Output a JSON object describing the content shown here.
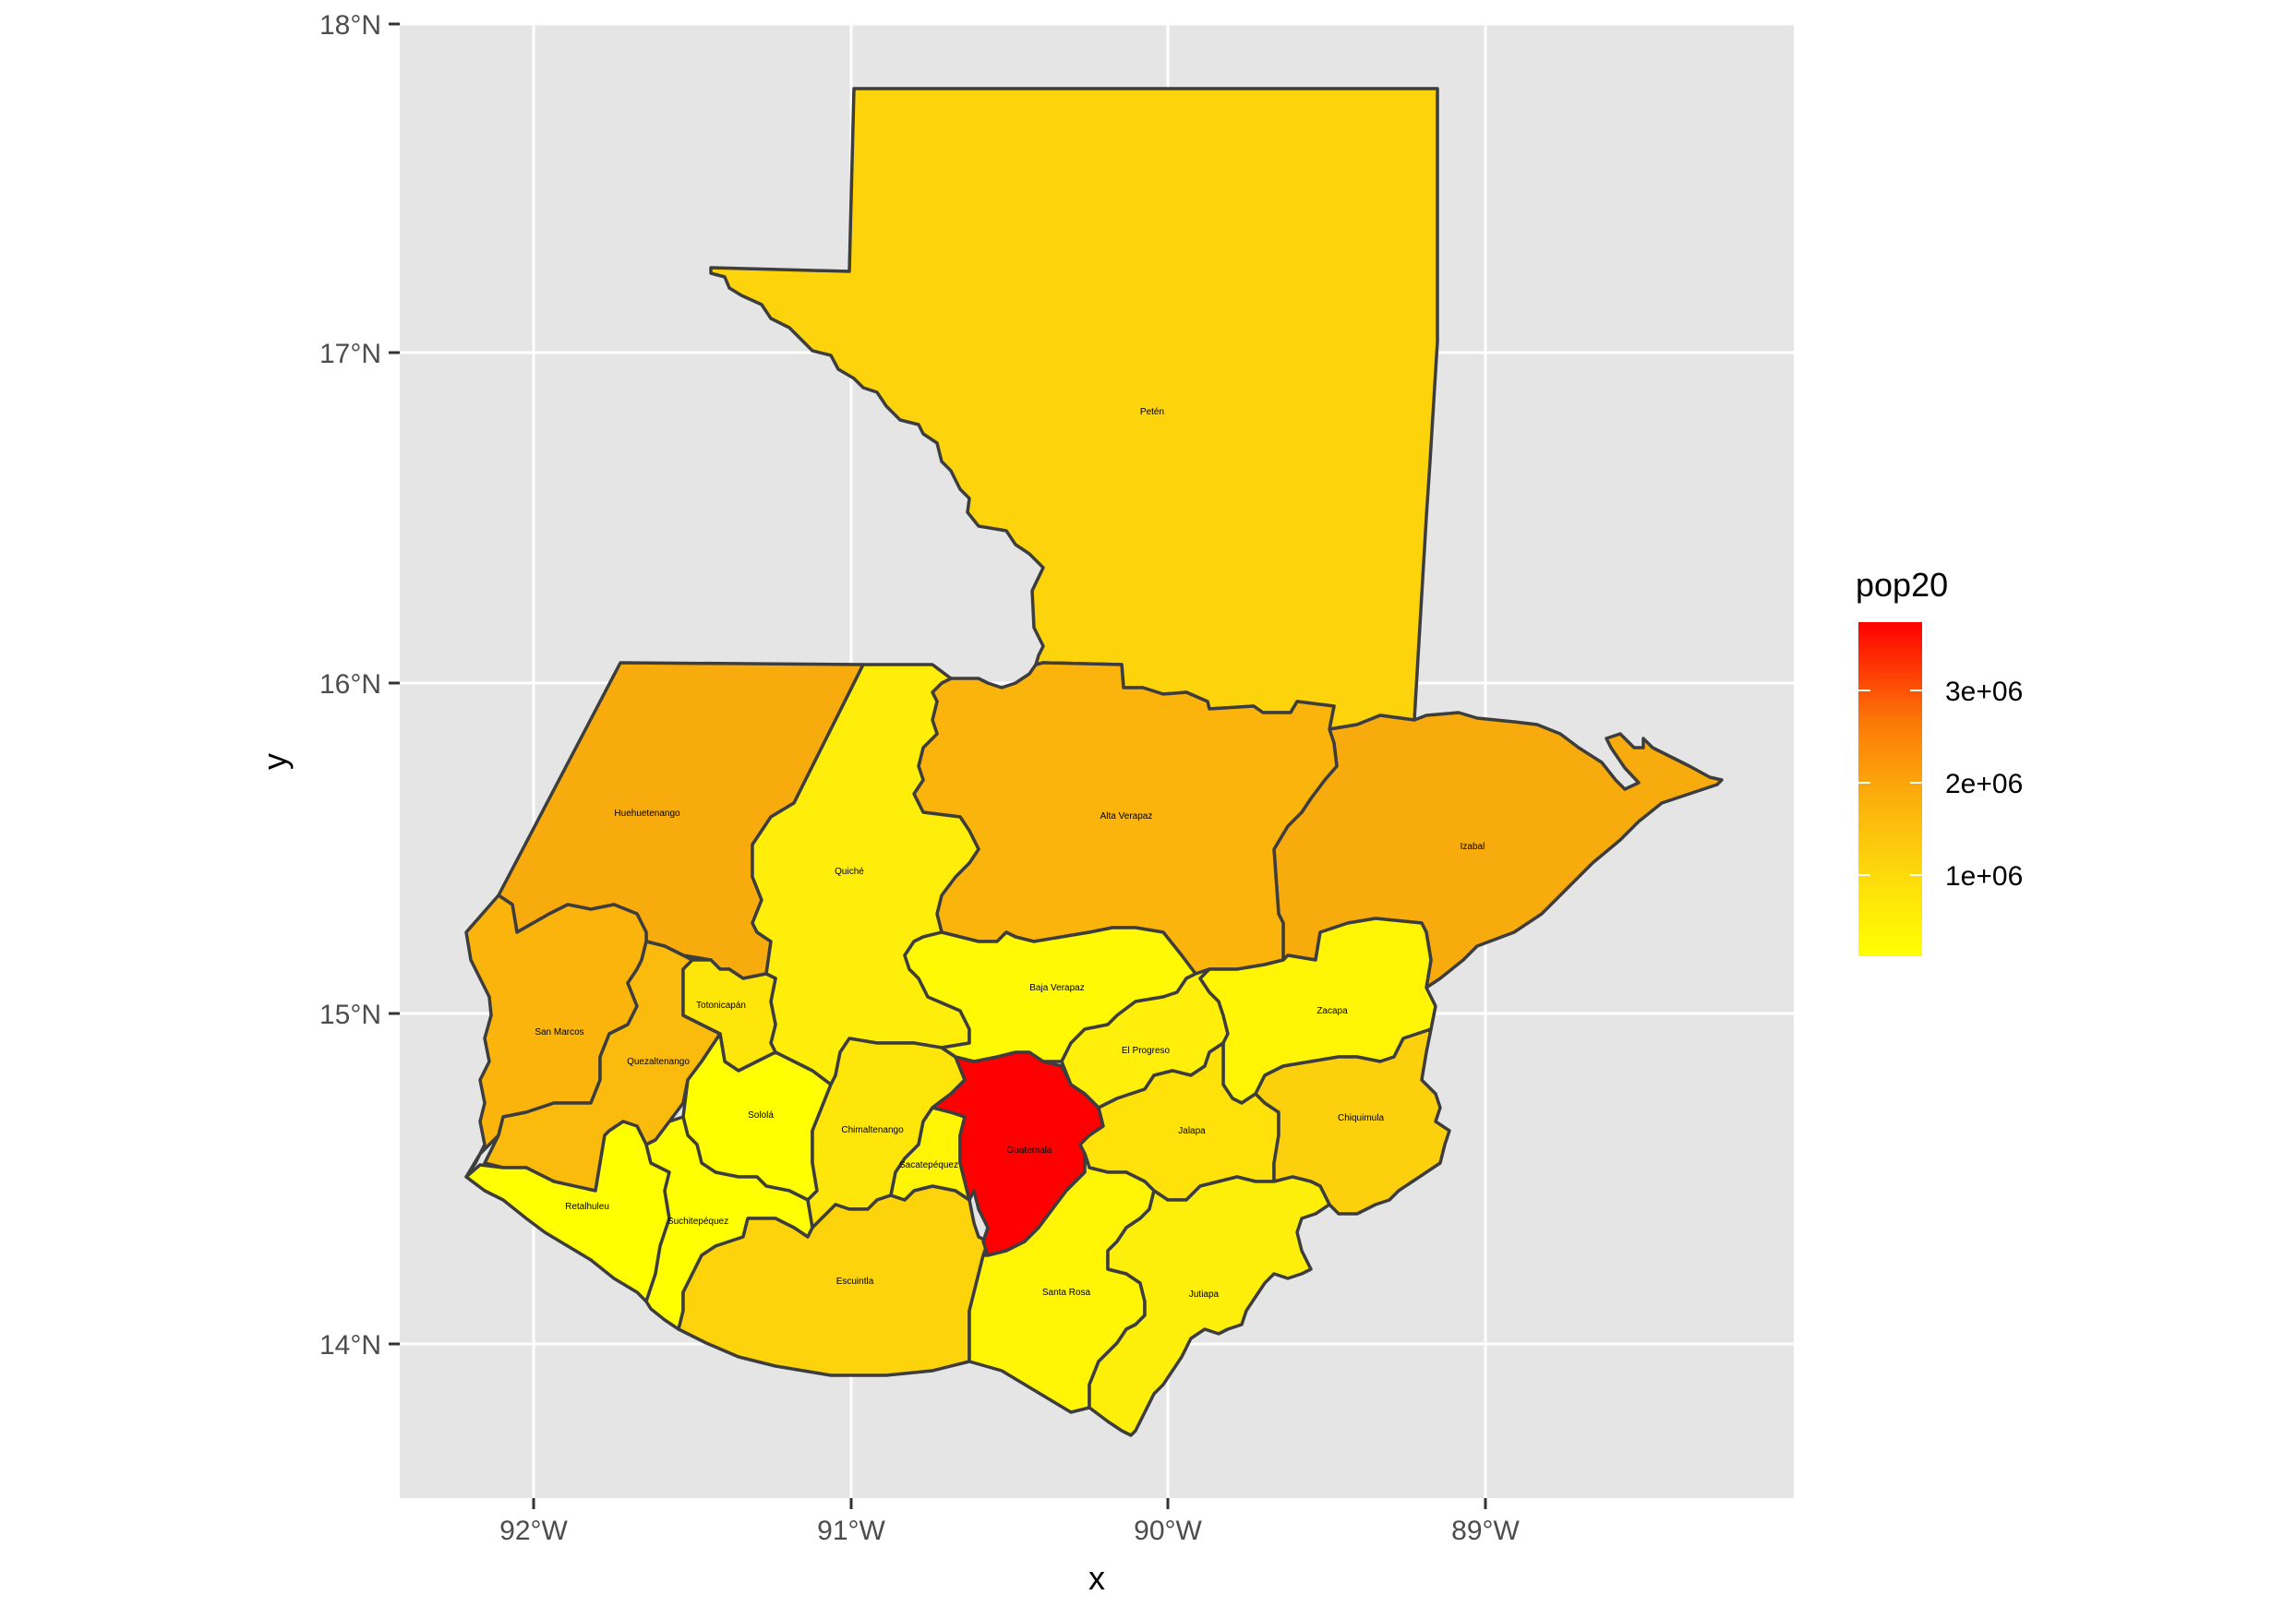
{
  "axes": {
    "x_title": "x",
    "y_title": "y",
    "x_ticks": [
      "92°W",
      "91°W",
      "90°W",
      "89°W"
    ],
    "y_ticks": [
      "18°N",
      "17°N",
      "16°N",
      "15°N",
      "14°N"
    ]
  },
  "legend": {
    "title": "pop20",
    "labels": [
      "3e+06",
      "2e+06",
      "1e+06"
    ],
    "color_low": "#ffff00",
    "color_high": "#ff0000"
  },
  "departments": [
    {
      "name": "Petén",
      "fill": "#fdd30c"
    },
    {
      "name": "Huehuetenango",
      "fill": "#f8ab0c"
    },
    {
      "name": "Quiché",
      "fill": "#fab40c"
    },
    {
      "name": "Alta Verapaz",
      "fill": "#f8ab0c"
    },
    {
      "name": "Izabal",
      "fill": "#ffee0a"
    },
    {
      "name": "San Marcos",
      "fill": "#fab40c"
    },
    {
      "name": "Quezaltenango",
      "fill": "#fbbb0c"
    },
    {
      "name": "Totonicapán",
      "fill": "#fee60a"
    },
    {
      "name": "Baja Verapaz",
      "fill": "#ffff00"
    },
    {
      "name": "Zacapa",
      "fill": "#ffff00"
    },
    {
      "name": "El Progreso",
      "fill": "#ffff00"
    },
    {
      "name": "Sololá",
      "fill": "#fee60a"
    },
    {
      "name": "Chimaltenango",
      "fill": "#fdd30c"
    },
    {
      "name": "Sacatepéquez",
      "fill": "#fff505"
    },
    {
      "name": "Guatemala",
      "fill": "#ff0000"
    },
    {
      "name": "Jalapa",
      "fill": "#fffa03"
    },
    {
      "name": "Chiquimula",
      "fill": "#ffef0a"
    },
    {
      "name": "Retalhuleu",
      "fill": "#fff505"
    },
    {
      "name": "Suchitepéquez",
      "fill": "#fee20a"
    },
    {
      "name": "Escuintla",
      "fill": "#fcd00c"
    },
    {
      "name": "Santa Rosa",
      "fill": "#fff505"
    },
    {
      "name": "Jutiapa",
      "fill": "#feef0a"
    }
  ]
}
